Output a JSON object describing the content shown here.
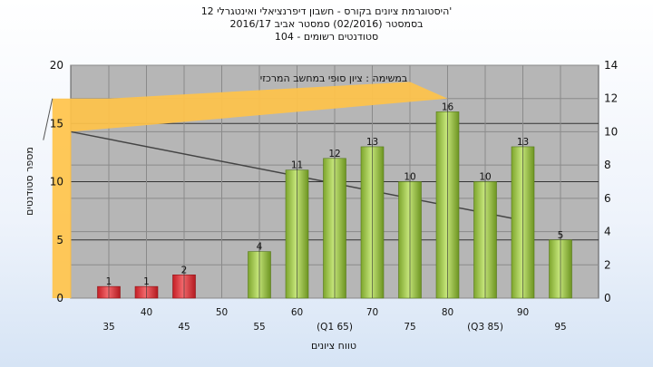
{
  "title": {
    "line1": "'היסטוגרמת ציונים בקורס - חשבון דיפרנציאלי ואינטגרלי 12",
    "line2": "בסמסטר  (02/2016)  סמסטר אביב 2016/17",
    "line3": "סטודנטים רשומים - 104"
  },
  "chart_data": {
    "type": "bar",
    "annotation": "במשימה : ציון סופי במחשב המרכזי",
    "xlabel": "טווח ציונים",
    "ylabel": "מספר סטודנטים",
    "ylim": [
      0,
      20
    ],
    "y_ticks": [
      0,
      5,
      10,
      15,
      20
    ],
    "y2lim": [
      0,
      14
    ],
    "y2_ticks": [
      0,
      2,
      4,
      6,
      8,
      10,
      12,
      14
    ],
    "grid": true,
    "categories": [
      "35",
      "40",
      "45",
      "50",
      "55",
      "60",
      "(Q1 65)",
      "70",
      "75",
      "80",
      "(Q3 85)",
      "90",
      "95"
    ],
    "values": [
      1,
      1,
      2,
      null,
      4,
      11,
      12,
      13,
      10,
      16,
      10,
      13,
      5
    ],
    "bar_labels": [
      "1",
      "1",
      "2",
      "",
      "4",
      "11",
      "12",
      "13",
      "10",
      "16",
      "10",
      "13",
      "5"
    ],
    "fail_color": "#e0343a",
    "pass_color": "#9dc84a",
    "boxplot": {
      "q1": 65,
      "median": 75,
      "q3": 85,
      "upper_whisker": 90,
      "scale_values": [
        12,
        12,
        13,
        12,
        10
      ],
      "color": "#ffc34a"
    }
  }
}
